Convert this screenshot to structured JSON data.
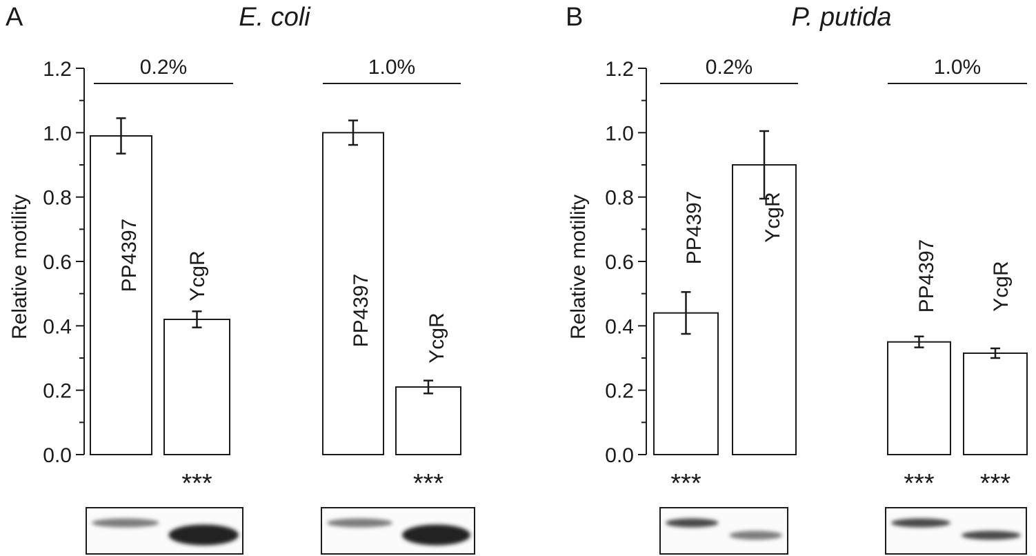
{
  "chart_data": [
    {
      "type": "bar",
      "panel": "A",
      "title": "E. coli",
      "ylabel": "Relative motility",
      "ylim": [
        0,
        1.2
      ],
      "yticks": [
        "0.0",
        "0.2",
        "0.4",
        "0.6",
        "0.8",
        "1.0",
        "1.2"
      ],
      "groups": [
        {
          "label": "0.2%",
          "bars": [
            {
              "name": "PP4397",
              "value": 0.99,
              "error": 0.055,
              "significance": ""
            },
            {
              "name": "YcgR",
              "value": 0.42,
              "error": 0.025,
              "significance": "***"
            }
          ],
          "blot": {
            "lanes": [
              "faint",
              "strong"
            ]
          }
        },
        {
          "label": "1.0%",
          "bars": [
            {
              "name": "PP4397",
              "value": 1.0,
              "error": 0.038,
              "significance": ""
            },
            {
              "name": "YcgR",
              "value": 0.21,
              "error": 0.02,
              "significance": "***"
            }
          ],
          "blot": {
            "lanes": [
              "faint",
              "strong"
            ]
          }
        }
      ]
    },
    {
      "type": "bar",
      "panel": "B",
      "title": "P. putida",
      "ylabel": "Relative motility",
      "ylim": [
        0,
        1.2
      ],
      "yticks": [
        "0.0",
        "0.2",
        "0.4",
        "0.6",
        "0.8",
        "1.0",
        "1.2"
      ],
      "groups": [
        {
          "label": "0.2%",
          "bars": [
            {
              "name": "PP4397",
              "value": 0.44,
              "error": 0.065,
              "significance": "***"
            },
            {
              "name": "YcgR",
              "value": 0.9,
              "error": 0.105,
              "significance": ""
            }
          ],
          "blot": {
            "lanes": [
              "medium",
              "faint"
            ]
          }
        },
        {
          "label": "1.0%",
          "bars": [
            {
              "name": "PP4397",
              "value": 0.35,
              "error": 0.017,
              "significance": "***"
            },
            {
              "name": "YcgR",
              "value": 0.315,
              "error": 0.015,
              "significance": "***"
            }
          ],
          "blot": {
            "lanes": [
              "medium",
              "medium"
            ]
          }
        }
      ]
    }
  ],
  "colors": {
    "ink": "#1a1a1a",
    "bar_fill": "#ffffff",
    "blot_band": "#2a2a2a"
  }
}
